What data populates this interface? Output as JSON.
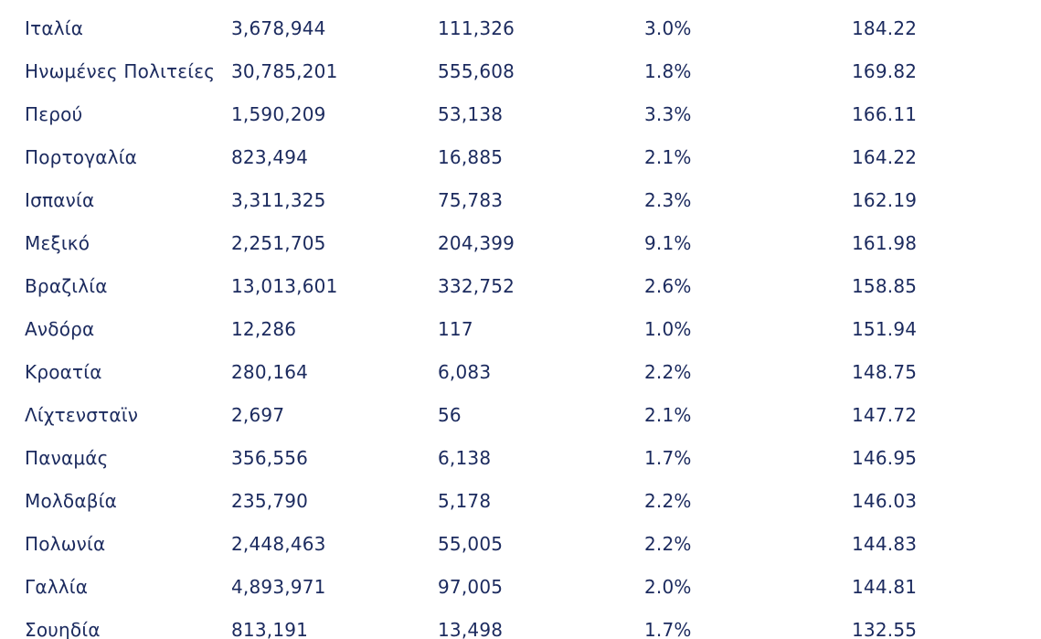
{
  "table": {
    "rows": [
      {
        "country": "Ιταλία",
        "cases": "3,678,944",
        "deaths": "111,326",
        "rate": "3.0%",
        "value": "184.22"
      },
      {
        "country": "Ηνωμένες Πολιτείες",
        "cases": "30,785,201",
        "deaths": "555,608",
        "rate": "1.8%",
        "value": "169.82"
      },
      {
        "country": "Περού",
        "cases": "1,590,209",
        "deaths": "53,138",
        "rate": "3.3%",
        "value": "166.11"
      },
      {
        "country": "Πορτογαλία",
        "cases": "823,494",
        "deaths": "16,885",
        "rate": "2.1%",
        "value": "164.22"
      },
      {
        "country": "Ισπανία",
        "cases": "3,311,325",
        "deaths": "75,783",
        "rate": "2.3%",
        "value": "162.19"
      },
      {
        "country": "Μεξικό",
        "cases": "2,251,705",
        "deaths": "204,399",
        "rate": "9.1%",
        "value": "161.98"
      },
      {
        "country": "Βραζιλία",
        "cases": "13,013,601",
        "deaths": "332,752",
        "rate": "2.6%",
        "value": "158.85"
      },
      {
        "country": "Ανδόρα",
        "cases": "12,286",
        "deaths": "117",
        "rate": "1.0%",
        "value": "151.94"
      },
      {
        "country": "Κροατία",
        "cases": "280,164",
        "deaths": "6,083",
        "rate": "2.2%",
        "value": "148.75"
      },
      {
        "country": "Λίχτενσταϊν",
        "cases": "2,697",
        "deaths": "56",
        "rate": "2.1%",
        "value": "147.72"
      },
      {
        "country": "Παναμάς",
        "cases": "356,556",
        "deaths": "6,138",
        "rate": "1.7%",
        "value": "146.95"
      },
      {
        "country": "Μολδαβία",
        "cases": "235,790",
        "deaths": "5,178",
        "rate": "2.2%",
        "value": "146.03"
      },
      {
        "country": "Πολωνία",
        "cases": "2,448,463",
        "deaths": "55,005",
        "rate": "2.2%",
        "value": "144.83"
      },
      {
        "country": "Γαλλία",
        "cases": "4,893,971",
        "deaths": "97,005",
        "rate": "2.0%",
        "value": "144.81"
      },
      {
        "country": "Σουηδία",
        "cases": "813,191",
        "deaths": "13,498",
        "rate": "1.7%",
        "value": "132.55"
      }
    ]
  },
  "colors": {
    "text": "#1b2a5e",
    "background": "#ffffff"
  }
}
